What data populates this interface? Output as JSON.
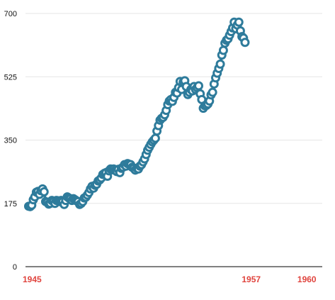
{
  "chart_data": {
    "type": "line",
    "title": "",
    "xlabel": "",
    "ylabel": "",
    "xlim": [
      1944.83,
      1960.83
    ],
    "ylim": [
      0,
      700
    ],
    "yticks": [
      0,
      175,
      350,
      525,
      700
    ],
    "ytick_labels": [
      "0",
      "175",
      "350",
      "525",
      "700"
    ],
    "xticks": [
      1945,
      1957,
      1960
    ],
    "xtick_labels": [
      "1945",
      "1957",
      "1960"
    ],
    "grid": true,
    "legend": "none",
    "colors": {
      "series": "#2e7b9b",
      "xtick": "#e0443e",
      "grid": "#e6e6e6",
      "axis": "#000000",
      "marker_fill": "#ffffff"
    },
    "x_start_year": 1945,
    "x_start_month": 1,
    "values": [
      167,
      166,
      170,
      185,
      193,
      206,
      208,
      200,
      210,
      215,
      207,
      180,
      178,
      173,
      175,
      183,
      180,
      175,
      183,
      182,
      180,
      183,
      180,
      172,
      183,
      193,
      190,
      188,
      183,
      188,
      185,
      182,
      180,
      172,
      175,
      180,
      190,
      192,
      198,
      205,
      215,
      222,
      217,
      225,
      228,
      237,
      240,
      245,
      255,
      258,
      260,
      250,
      265,
      270,
      268,
      270,
      266,
      263,
      269,
      260,
      272,
      275,
      282,
      278,
      285,
      283,
      282,
      275,
      272,
      267,
      272,
      270,
      278,
      282,
      290,
      298,
      310,
      322,
      330,
      338,
      345,
      350,
      355,
      375,
      390,
      405,
      410,
      413,
      420,
      432,
      448,
      458,
      462,
      457,
      468,
      482,
      480,
      495,
      512,
      490,
      510,
      514,
      498,
      476,
      482,
      490,
      486,
      498,
      490,
      495,
      500,
      478,
      462,
      438,
      445,
      446,
      450,
      458,
      475,
      482,
      505,
      522,
      535,
      548,
      560,
      585,
      598,
      618,
      626,
      630,
      640,
      650,
      660,
      676,
      658,
      668,
      676,
      652,
      636,
      632,
      620
    ]
  }
}
